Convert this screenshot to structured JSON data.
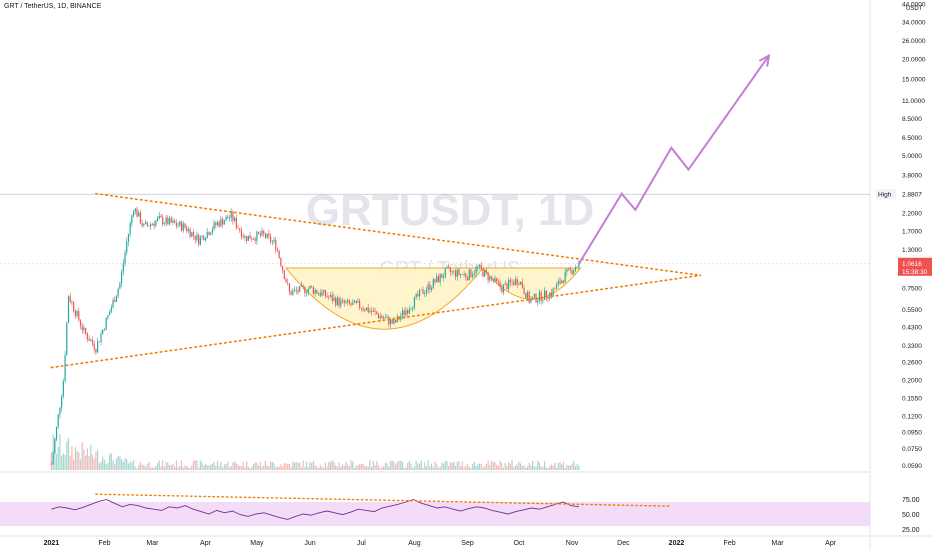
{
  "header": {
    "symbol_line": "GRT / TetherUS, 1D, BINANCE"
  },
  "watermark": {
    "ticker": "GRTUSDT, 1D",
    "name": "GRT / TetherUS"
  },
  "currency_label": "USDT",
  "colors": {
    "up": "#26a69a",
    "down": "#ef5350",
    "volume_up": "#a5d6d0",
    "volume_down": "#f5b7b5",
    "trendline": "#f57c00",
    "cup_fill": "#fff3c4",
    "cup_stroke": "#f5a623",
    "arrow": "#c77dd8",
    "rsi_line": "#7b2d8e",
    "rsi_band": "#f2dcf7",
    "last_price_bg": "#ef5350",
    "high_line": "#b2b5be"
  },
  "chart_data": {
    "type": "candlestick",
    "scale": "log",
    "x_tick_labels": [
      "2021",
      "Feb",
      "Mar",
      "Apr",
      "May",
      "Jun",
      "Jul",
      "Aug",
      "Sep",
      "Oct",
      "Nov",
      "Dec",
      "2022",
      "Feb",
      "Mar",
      "Apr"
    ],
    "y_tick_labels": [
      "44.0000",
      "34.0000",
      "26.0000",
      "20.0000",
      "15.0000",
      "11.0000",
      "8.5000",
      "6.5000",
      "5.0000",
      "3.8000",
      "2.8807",
      "2.2000",
      "1.7000",
      "1.3000",
      "1.0616",
      "0.7500",
      "0.5500",
      "0.4300",
      "0.3300",
      "0.2600",
      "0.2000",
      "0.1550",
      "0.1200",
      "0.0950",
      "0.0750",
      "0.0590"
    ],
    "high_marker": {
      "label": "High",
      "value": "2.8807"
    },
    "last_price": {
      "value": "1.0616",
      "countdown": "15:38:30"
    },
    "price_path": [
      {
        "date": "2021-01-01",
        "price": 0.06
      },
      {
        "date": "2021-01-08",
        "price": 0.2
      },
      {
        "date": "2021-01-11",
        "price": 0.68
      },
      {
        "date": "2021-01-20",
        "price": 0.4
      },
      {
        "date": "2021-01-27",
        "price": 0.32
      },
      {
        "date": "2021-02-03",
        "price": 0.5
      },
      {
        "date": "2021-02-10",
        "price": 0.8
      },
      {
        "date": "2021-02-14",
        "price": 1.45
      },
      {
        "date": "2021-02-18",
        "price": 2.4
      },
      {
        "date": "2021-02-24",
        "price": 1.8
      },
      {
        "date": "2021-03-05",
        "price": 2.0
      },
      {
        "date": "2021-03-20",
        "price": 1.8
      },
      {
        "date": "2021-03-28",
        "price": 1.5
      },
      {
        "date": "2021-04-08",
        "price": 1.9
      },
      {
        "date": "2021-04-16",
        "price": 2.1
      },
      {
        "date": "2021-04-24",
        "price": 1.55
      },
      {
        "date": "2021-05-05",
        "price": 1.6
      },
      {
        "date": "2021-05-12",
        "price": 1.4
      },
      {
        "date": "2021-05-20",
        "price": 0.7
      },
      {
        "date": "2021-06-01",
        "price": 0.75
      },
      {
        "date": "2021-06-20",
        "price": 0.6
      },
      {
        "date": "2021-07-01",
        "price": 0.58
      },
      {
        "date": "2021-07-20",
        "price": 0.45
      },
      {
        "date": "2021-08-05",
        "price": 0.7
      },
      {
        "date": "2021-08-20",
        "price": 0.95
      },
      {
        "date": "2021-09-01",
        "price": 0.9
      },
      {
        "date": "2021-09-07",
        "price": 1.0
      },
      {
        "date": "2021-09-21",
        "price": 0.75
      },
      {
        "date": "2021-10-01",
        "price": 0.85
      },
      {
        "date": "2021-10-07",
        "price": 0.63
      },
      {
        "date": "2021-10-20",
        "price": 0.7
      },
      {
        "date": "2021-10-28",
        "price": 0.9
      },
      {
        "date": "2021-11-05",
        "price": 1.06
      }
    ],
    "projection_path": [
      {
        "date": "2021-11-05",
        "price": 1.06
      },
      {
        "date": "2021-11-30",
        "price": 2.9
      },
      {
        "date": "2021-12-08",
        "price": 2.3
      },
      {
        "date": "2021-12-29",
        "price": 5.6
      },
      {
        "date": "2022-01-08",
        "price": 4.1
      },
      {
        "date": "2022-02-24",
        "price": 21.0
      }
    ],
    "resistance_line": [
      {
        "date": "2021-01-27",
        "price": 2.9
      },
      {
        "date": "2022-01-15",
        "price": 0.9
      }
    ],
    "support_line": [
      {
        "date": "2021-01-01",
        "price": 0.24
      },
      {
        "date": "2022-01-15",
        "price": 0.9
      }
    ],
    "rsi": {
      "tick_labels": [
        "75.00",
        "50.00",
        "25.00"
      ],
      "band": [
        70,
        30
      ],
      "values": [
        58,
        62,
        60,
        57,
        61,
        66,
        71,
        74,
        68,
        62,
        66,
        64,
        60,
        58,
        56,
        62,
        60,
        64,
        58,
        54,
        50,
        56,
        52,
        55,
        49,
        46,
        50,
        52,
        48,
        44,
        41,
        46,
        50,
        48,
        52,
        55,
        52,
        49,
        53,
        58,
        56,
        54,
        60,
        63,
        66,
        70,
        74,
        68,
        64,
        60,
        62,
        58,
        55,
        59,
        62,
        60,
        56,
        53,
        50,
        54,
        57,
        60,
        58,
        62,
        66,
        70,
        64,
        62
      ],
      "trendline": [
        {
          "date": "2021-01-27",
          "value": 83
        },
        {
          "date": "2021-12-29",
          "value": 63
        }
      ]
    }
  }
}
